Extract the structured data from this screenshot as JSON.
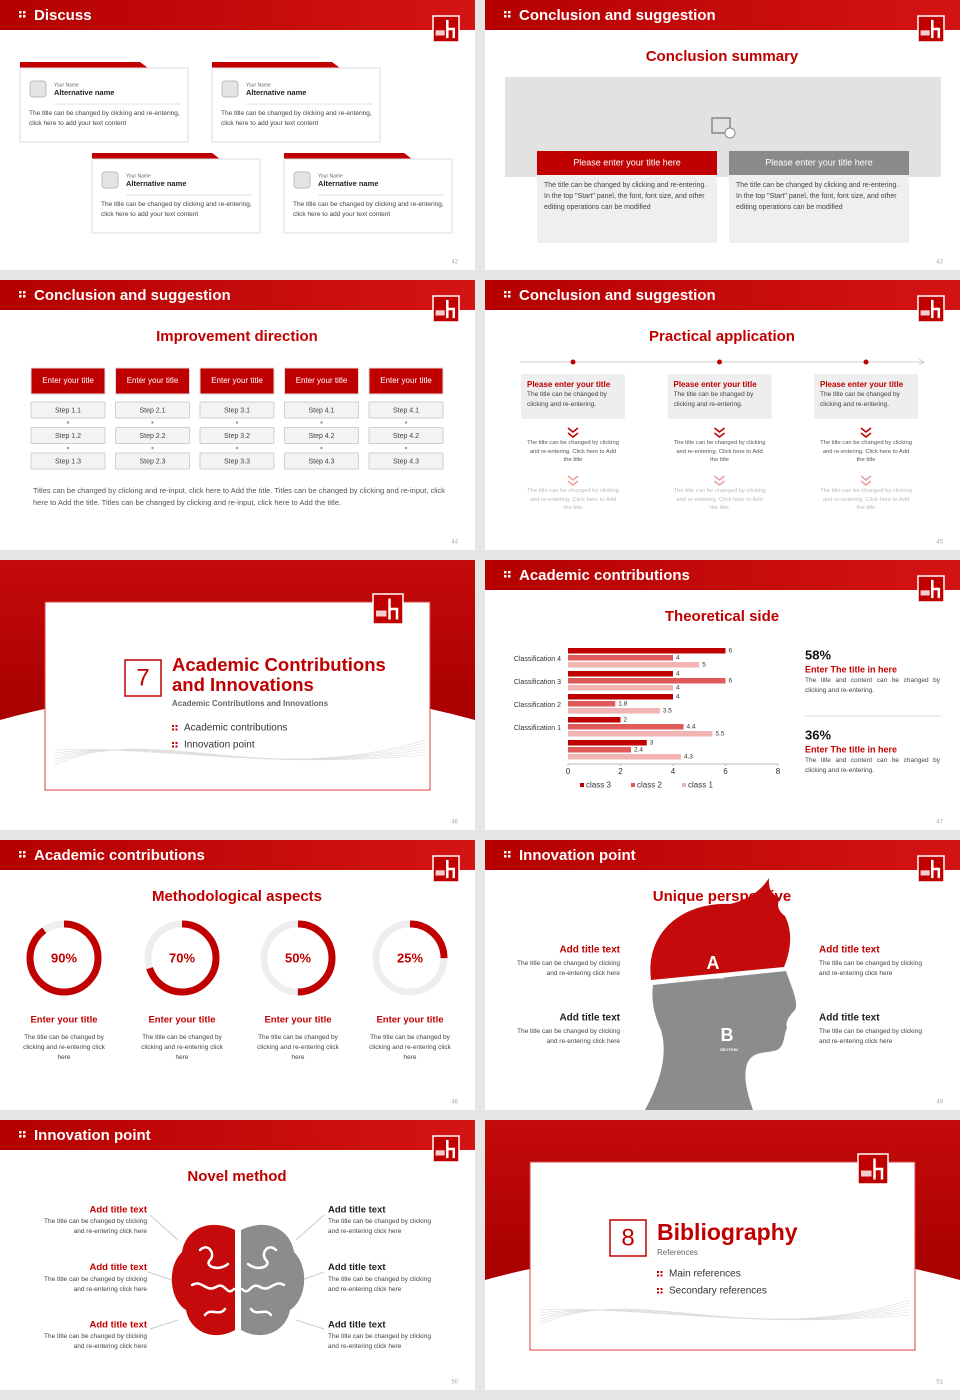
{
  "slides": [
    {
      "page": "42",
      "header": "Discuss",
      "cards": [
        {
          "name_label": "Your Name",
          "name": "Alternative name",
          "text": "The title can be changed by clicking and re-entering, click here to add your text content"
        },
        {
          "name_label": "Your Name",
          "name": "Alternative name",
          "text": "The title can be changed by clicking and re-entering, click here to add your text content"
        },
        {
          "name_label": "Your Name",
          "name": "Alternative name",
          "text": "The title can be changed by clicking and re-entering, click here to add your text content"
        },
        {
          "name_label": "Your Name",
          "name": "Alternative name",
          "text": "The title can be changed by clicking and re-entering, click here to add your text content"
        }
      ]
    },
    {
      "page": "43",
      "header": "Conclusion and suggestion",
      "title": "Conclusion summary",
      "boxes": [
        {
          "title": "Please enter your title here",
          "text": "The title can be changed by clicking and re-entering. In the top \"Start\" panel, the font, font size, and other editing operations can be modified"
        },
        {
          "title": "Please enter your title here",
          "text": "The title can be changed by clicking and re-entering. In the top \"Start\" panel, the font, font size, and other editing operations can be modified"
        }
      ]
    },
    {
      "page": "44",
      "header": "Conclusion and suggestion",
      "title": "Improvement direction",
      "columns": [
        {
          "title": "Enter your title",
          "steps": [
            "Step 1.1",
            "Step 1.2",
            "Step 1.3"
          ]
        },
        {
          "title": "Enter your title",
          "steps": [
            "Step 2.1",
            "Step 2.2",
            "Step 2.3"
          ]
        },
        {
          "title": "Enter your title",
          "steps": [
            "Step 3.1",
            "Step 3.2",
            "Step 3.3"
          ]
        },
        {
          "title": "Enter your title",
          "steps": [
            "Step 4.1",
            "Step 4.2",
            "Step 4.3"
          ]
        },
        {
          "title": "Enter your title",
          "steps": [
            "Step 4.1",
            "Step 4.2",
            "Step 4.3"
          ]
        }
      ],
      "footer": "Titles can be changed by clicking and re-input, click here to Add the title. Titles can be changed by clicking and re-input, click here to Add the title. Titles can be changed by clicking and re-input, click here to Add the title."
    },
    {
      "page": "45",
      "header": "Conclusion and suggestion",
      "title": "Practical application",
      "columns": [
        {
          "title": "Please enter your title",
          "text": "The title can be changed by clicking and re-entering.",
          "items": [
            "The title can be changed by clicking and re-entering. Click here to Add the title",
            "The title can be changed by clicking and re-entering. Click here to Add the title"
          ]
        },
        {
          "title": "Please enter your title",
          "text": "The title can be changed by clicking and re-entering.",
          "items": [
            "The title can be changed by clicking and re-entering. Click here to Add the title",
            "The title can be changed by clicking and re-entering. Click here to Add the title"
          ]
        },
        {
          "title": "Please enter your title",
          "text": "The title can be changed by clicking and re-entering.",
          "items": [
            "The title can be changed by clicking and re-entering. Click here to Add the title",
            "The title can be changed by clicking and re-entering. Click here to Add the title"
          ]
        }
      ]
    },
    {
      "page": "46",
      "number": "7",
      "title": "Academic Contributions and Innovations",
      "subtitle": "Academic Contributions and Innovations",
      "items": [
        "Academic contributions",
        "Innovation point"
      ]
    },
    {
      "page": "47",
      "header": "Academic contributions",
      "title": "Theoretical side",
      "chart": {
        "type": "bar",
        "categories": [
          "Classification 4",
          "Classification 3",
          "Classification 2",
          "Classification 1",
          null
        ],
        "series": [
          {
            "name": "class 3",
            "color": "#c00000",
            "values": [
              6,
              4,
              4,
              2,
              3
            ]
          },
          {
            "name": "class 2",
            "color": "#e05a5a",
            "values": [
              4,
              6,
              1.8,
              4.4,
              2.4
            ]
          },
          {
            "name": "class 1",
            "color": "#f2b3b3",
            "values": [
              5,
              4,
              3.5,
              5.5,
              4.3
            ]
          }
        ],
        "xlim": [
          0,
          8
        ],
        "xticks": [
          0,
          2,
          4,
          6,
          8
        ]
      },
      "stats": [
        {
          "value": "58%",
          "title": "Enter The title in here",
          "text": "The title and content can be changed by clicking and re-entering."
        },
        {
          "value": "36%",
          "title": "Enter The title in here",
          "text": "The title and content can be changed by clicking and re-entering."
        }
      ]
    },
    {
      "page": "48",
      "header": "Academic contributions",
      "title": "Methodological aspects",
      "rings": [
        {
          "value": 90,
          "label": "90%",
          "title": "Enter your title",
          "text": "The title can be changed by clicking and re-entering click here"
        },
        {
          "value": 70,
          "label": "70%",
          "title": "Enter your title",
          "text": "The title can be changed by clicking and re-entering click here"
        },
        {
          "value": 50,
          "label": "50%",
          "title": "Enter your title",
          "text": "The title can be changed by clicking and re-entering click here"
        },
        {
          "value": 25,
          "label": "25%",
          "title": "Enter your title",
          "text": "The title can be changed by clicking and re-entering click here"
        }
      ]
    },
    {
      "page": "49",
      "header": "Innovation point",
      "title": "Unique perspective",
      "head": [
        "A",
        "SECTION",
        "B",
        "SECTION"
      ],
      "items": [
        {
          "title": "Add title text",
          "text": "The title can be changed by clicking and re-entering click here"
        },
        {
          "title": "Add title text",
          "text": "The title can be changed by clicking and re-entering click here"
        },
        {
          "title": "Add title text",
          "text": "The title can be changed by clicking and re-entering click here"
        },
        {
          "title": "Add title text",
          "text": "The title can be changed by clicking and re-entering click here"
        }
      ]
    },
    {
      "page": "50",
      "header": "Innovation point",
      "title": "Novel method",
      "items": [
        {
          "title": "Add title text",
          "text": "The title can be changed by clicking and re-entering click here"
        },
        {
          "title": "Add title text",
          "text": "The title can be changed by clicking and re-entering click here"
        },
        {
          "title": "Add title text",
          "text": "The title can be changed by clicking and re-entering click here"
        },
        {
          "title": "Add title text",
          "text": "The title can be changed by clicking and re-entering click here"
        },
        {
          "title": "Add title text",
          "text": "The title can be changed by clicking and re-entering click here"
        },
        {
          "title": "Add title text",
          "text": "The title can be changed by clicking and re-entering click here"
        }
      ]
    },
    {
      "page": "51",
      "number": "8",
      "title": "Bibliography",
      "subtitle": "References",
      "items": [
        "Main references",
        "Secondary references"
      ]
    }
  ]
}
